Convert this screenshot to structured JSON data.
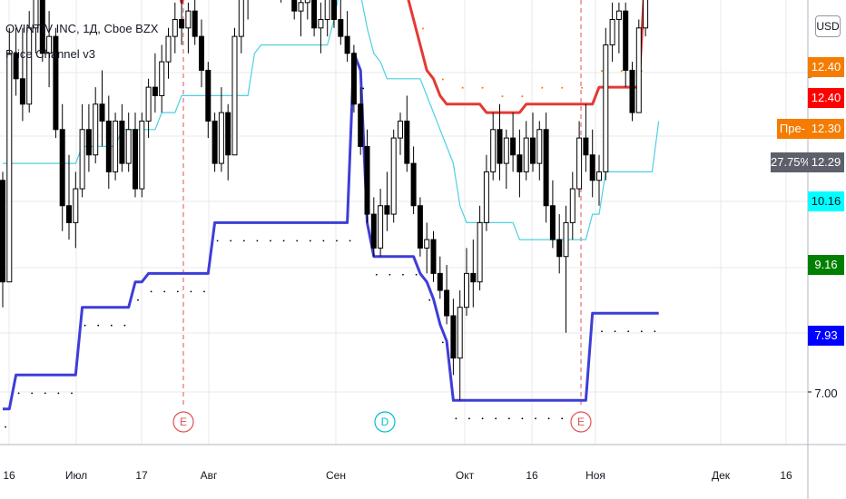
{
  "header": {
    "title": "OVINTIV INC, 1Д, Cboe BZX",
    "indicator": "Price Channel v3",
    "currency_button": "USD"
  },
  "price_scale": {
    "tags": [
      {
        "text": "12.40",
        "bg": "#f57c00",
        "fg": "#ffffff"
      },
      {
        "text": "12.40",
        "bg": "#ff0000",
        "fg": "#ffffff"
      },
      {
        "text": "Пре-",
        "bg": "#f57c00",
        "fg": "#ffffff"
      },
      {
        "text": "12.30",
        "bg": "#f57c00",
        "fg": "#ffffff"
      },
      {
        "text": "27.75%",
        "bg": "#5d606b",
        "fg": "#ffffff"
      },
      {
        "text": "12.29",
        "bg": "#5d606b",
        "fg": "#ffffff"
      },
      {
        "text": "10.16",
        "bg": "#00ffff",
        "fg": "#131722"
      },
      {
        "text": "9.16",
        "bg": "#008000",
        "fg": "#ffffff"
      },
      {
        "text": "7.93",
        "bg": "#0000ff",
        "fg": "#ffffff"
      },
      {
        "text": "7.00",
        "bg": "",
        "fg": "#131722"
      }
    ]
  },
  "time_axis": {
    "labels": [
      "16",
      "Июл",
      "17",
      "Авг",
      "Сен",
      "Окт",
      "16",
      "Ноя",
      "Дек",
      "16"
    ]
  },
  "events": [
    {
      "label": "E",
      "color": "#e05252"
    },
    {
      "label": "D",
      "color": "#00bcd4"
    },
    {
      "label": "E",
      "color": "#e05252"
    }
  ],
  "colors": {
    "up_candle": "#ffffff",
    "down_candle": "#000000",
    "upper_channel": "#e53935",
    "lower_channel": "#3d3dd8",
    "mid_channel": "#4dd0e1",
    "dots_orange": "#f57c00",
    "last_price_line": "#f57c00"
  },
  "chart_data": {
    "type": "candlestick",
    "title": "OVINTIV INC, 1Д, Cboe BZX",
    "indicator": "Price Channel v3",
    "yaxis": {
      "ticks": [
        7.0,
        7.93,
        9.16,
        10.16,
        12.29,
        12.3,
        12.4
      ],
      "range": [
        6.5,
        13.5
      ]
    },
    "last_close": 12.4,
    "change_percent": "27.75%",
    "candles": [
      [
        9.5,
        9.6,
        8.0,
        8.3
      ],
      [
        8.3,
        11.3,
        8.3,
        11.0
      ],
      [
        11.0,
        11.3,
        10.5,
        10.7
      ],
      [
        10.7,
        11.3,
        10.2,
        10.4
      ],
      [
        10.4,
        11.5,
        10.3,
        11.3
      ],
      [
        11.3,
        12.0,
        11.0,
        11.7
      ],
      [
        11.7,
        11.9,
        10.9,
        11.0
      ],
      [
        11.0,
        11.5,
        10.6,
        11.2
      ],
      [
        11.2,
        11.3,
        10.0,
        10.1
      ],
      [
        10.1,
        10.4,
        8.9,
        9.2
      ],
      [
        9.2,
        9.8,
        8.8,
        9.0
      ],
      [
        9.0,
        9.6,
        8.7,
        9.4
      ],
      [
        9.4,
        10.4,
        9.3,
        10.1
      ],
      [
        10.1,
        10.4,
        9.6,
        9.8
      ],
      [
        9.8,
        10.6,
        9.7,
        10.4
      ],
      [
        10.4,
        10.8,
        9.9,
        10.2
      ],
      [
        10.2,
        10.5,
        9.4,
        9.6
      ],
      [
        9.6,
        10.3,
        9.5,
        10.2
      ],
      [
        10.2,
        10.4,
        9.6,
        9.7
      ],
      [
        9.7,
        10.3,
        9.6,
        10.1
      ],
      [
        10.1,
        10.3,
        9.3,
        9.4
      ],
      [
        9.4,
        10.3,
        9.3,
        10.2
      ],
      [
        10.2,
        10.7,
        10.0,
        10.6
      ],
      [
        10.6,
        11.0,
        10.3,
        10.5
      ],
      [
        10.5,
        11.1,
        10.3,
        10.9
      ],
      [
        10.9,
        11.3,
        10.7,
        11.2
      ],
      [
        11.2,
        11.6,
        11.0,
        11.4
      ],
      [
        11.4,
        11.8,
        11.1,
        11.3
      ],
      [
        11.3,
        11.6,
        11.0,
        11.5
      ],
      [
        11.5,
        11.8,
        11.1,
        11.2
      ],
      [
        11.2,
        11.4,
        10.6,
        10.8
      ],
      [
        10.8,
        10.9,
        10.0,
        10.2
      ],
      [
        10.2,
        10.3,
        9.6,
        9.7
      ],
      [
        9.7,
        10.6,
        9.6,
        10.3
      ],
      [
        10.3,
        10.4,
        9.5,
        9.8
      ],
      [
        9.8,
        11.3,
        9.8,
        11.2
      ],
      [
        11.2,
        11.9,
        11.0,
        11.7
      ],
      [
        11.7,
        12.0,
        11.4,
        11.9
      ],
      [
        11.9,
        12.9,
        11.8,
        12.6
      ],
      [
        12.6,
        13.2,
        12.1,
        12.3
      ],
      [
        12.3,
        12.8,
        11.8,
        12.1
      ],
      [
        12.1,
        12.6,
        11.7,
        11.9
      ],
      [
        11.9,
        12.5,
        11.6,
        12.3
      ],
      [
        12.3,
        12.5,
        11.8,
        12.0
      ],
      [
        12.0,
        12.4,
        11.4,
        11.5
      ],
      [
        11.5,
        11.9,
        11.2,
        11.6
      ],
      [
        11.6,
        12.0,
        11.4,
        11.8
      ],
      [
        11.8,
        12.0,
        11.2,
        11.3
      ],
      [
        11.3,
        11.6,
        11.0,
        11.4
      ],
      [
        11.4,
        11.9,
        11.2,
        11.7
      ],
      [
        11.7,
        11.9,
        11.3,
        11.4
      ],
      [
        11.4,
        11.7,
        11.1,
        11.2
      ],
      [
        11.2,
        11.5,
        10.9,
        11.0
      ],
      [
        11.0,
        11.1,
        10.3,
        10.4
      ],
      [
        10.4,
        10.6,
        9.8,
        9.9
      ],
      [
        9.9,
        10.1,
        9.0,
        9.1
      ],
      [
        9.1,
        9.3,
        8.6,
        8.7
      ],
      [
        8.7,
        9.4,
        8.6,
        9.2
      ],
      [
        9.2,
        9.6,
        8.9,
        9.1
      ],
      [
        9.1,
        10.1,
        9.0,
        10.0
      ],
      [
        10.0,
        10.3,
        9.8,
        10.2
      ],
      [
        10.2,
        10.5,
        9.6,
        9.7
      ],
      [
        9.7,
        9.9,
        9.1,
        9.2
      ],
      [
        9.2,
        9.3,
        8.6,
        8.7
      ],
      [
        8.7,
        9.0,
        8.4,
        8.8
      ],
      [
        8.8,
        8.9,
        8.3,
        8.4
      ],
      [
        8.4,
        8.6,
        8.1,
        8.2
      ],
      [
        8.2,
        8.5,
        7.8,
        7.9
      ],
      [
        7.9,
        8.1,
        7.2,
        7.4
      ],
      [
        7.4,
        8.2,
        6.9,
        8.0
      ],
      [
        8.0,
        8.7,
        7.9,
        8.4
      ],
      [
        8.4,
        8.8,
        8.0,
        8.3
      ],
      [
        8.3,
        9.2,
        8.2,
        9.0
      ],
      [
        9.0,
        9.8,
        8.9,
        9.6
      ],
      [
        9.6,
        10.3,
        9.5,
        10.1
      ],
      [
        10.1,
        10.4,
        9.5,
        9.7
      ],
      [
        9.7,
        10.1,
        9.4,
        10.0
      ],
      [
        10.0,
        10.3,
        9.6,
        9.8
      ],
      [
        9.8,
        10.1,
        9.3,
        9.6
      ],
      [
        9.6,
        10.2,
        9.5,
        10.0
      ],
      [
        10.0,
        10.3,
        9.6,
        9.7
      ],
      [
        9.7,
        10.2,
        9.5,
        10.1
      ],
      [
        10.1,
        10.3,
        9.0,
        9.2
      ],
      [
        9.2,
        9.5,
        8.7,
        8.8
      ],
      [
        8.8,
        9.1,
        8.4,
        8.6
      ],
      [
        8.6,
        9.2,
        7.7,
        9.0
      ],
      [
        9.0,
        9.6,
        8.8,
        9.4
      ],
      [
        9.4,
        10.2,
        9.3,
        10.0
      ],
      [
        10.0,
        10.4,
        9.6,
        9.8
      ],
      [
        9.8,
        10.1,
        9.3,
        9.5
      ],
      [
        9.5,
        9.8,
        9.2,
        9.6
      ],
      [
        9.6,
        11.3,
        9.5,
        11.1
      ],
      [
        11.1,
        11.6,
        10.9,
        11.4
      ],
      [
        11.4,
        11.6,
        11.0,
        11.5
      ],
      [
        11.5,
        11.6,
        10.6,
        10.8
      ],
      [
        10.8,
        10.9,
        10.2,
        10.3
      ],
      [
        10.3,
        11.4,
        10.3,
        11.3
      ],
      [
        11.3,
        12.0,
        11.2,
        11.8
      ],
      [
        11.8,
        12.7,
        11.7,
        12.4
      ]
    ],
    "upper_channel": [
      12.9,
      12.9,
      12.9,
      12.9,
      12.9,
      12.9,
      12.9,
      12.9,
      12.9,
      12.9,
      12.9,
      12.9,
      12.9,
      12.9,
      12.9,
      12.9,
      11.9,
      11.9,
      11.9,
      11.9,
      11.9,
      11.9,
      11.9,
      11.9,
      11.9,
      11.9,
      11.9,
      11.6,
      11.8,
      11.8,
      11.8,
      11.8,
      11.8,
      11.8,
      11.8,
      11.8,
      11.8,
      11.8,
      12.9,
      13.2,
      13.2,
      13.2,
      13.2,
      13.2,
      13.2,
      13.2,
      13.2,
      13.2,
      13.2,
      13.2,
      13.2,
      13.2,
      13.2,
      13.2,
      13.0,
      12.8,
      12.6,
      12.6,
      12.4,
      12.1,
      12.0,
      11.7,
      11.4,
      11.1,
      10.8,
      10.7,
      10.5,
      10.4,
      10.4,
      10.4,
      10.4,
      10.4,
      10.4,
      10.3,
      10.3,
      10.3,
      10.3,
      10.3,
      10.3,
      10.4,
      10.4,
      10.4,
      10.4,
      10.4,
      10.4,
      10.4,
      10.4,
      10.4,
      10.4,
      10.4,
      10.6,
      10.6,
      10.6,
      10.6,
      10.6,
      10.6,
      10.6,
      12.0,
      12.0,
      12.0
    ],
    "lower_channel": [
      6.8,
      6.8,
      7.2,
      7.2,
      7.2,
      7.2,
      7.2,
      7.2,
      7.2,
      7.2,
      7.2,
      7.2,
      8.0,
      8.0,
      8.0,
      8.0,
      8.0,
      8.0,
      8.0,
      8.0,
      8.3,
      8.3,
      8.4,
      8.4,
      8.4,
      8.4,
      8.4,
      8.4,
      8.4,
      8.4,
      8.4,
      8.4,
      9.0,
      9.0,
      9.0,
      9.0,
      9.0,
      9.0,
      9.0,
      9.0,
      9.0,
      9.0,
      9.0,
      9.0,
      9.0,
      9.0,
      9.0,
      9.0,
      9.0,
      9.0,
      9.0,
      9.0,
      9.0,
      11.0,
      10.8,
      9.0,
      8.6,
      8.6,
      8.6,
      8.6,
      8.6,
      8.6,
      8.6,
      8.4,
      8.3,
      8.1,
      7.8,
      7.6,
      6.9,
      6.9,
      6.9,
      6.9,
      6.9,
      6.9,
      6.9,
      6.9,
      6.9,
      6.9,
      6.9,
      6.9,
      6.9,
      6.9,
      6.9,
      6.9,
      6.9,
      6.9,
      6.9,
      6.9,
      6.9,
      7.93,
      7.93,
      7.93,
      7.93,
      7.93,
      7.93,
      7.93,
      7.93,
      7.93,
      7.93,
      7.93
    ],
    "mid_channel": [
      9.7,
      9.7,
      9.7,
      9.7,
      9.7,
      9.7,
      9.7,
      9.7,
      9.7,
      9.7,
      9.7,
      9.7,
      9.9,
      9.9,
      9.9,
      9.9,
      9.9,
      9.9,
      10.1,
      10.1,
      10.1,
      10.1,
      10.1,
      10.1,
      10.3,
      10.3,
      10.3,
      10.5,
      10.5,
      10.5,
      10.5,
      10.5,
      10.5,
      10.5,
      10.5,
      10.5,
      10.5,
      10.5,
      11.0,
      11.1,
      11.1,
      11.1,
      11.1,
      11.1,
      11.1,
      11.1,
      11.1,
      11.1,
      11.1,
      11.1,
      11.4,
      11.8,
      12.3,
      12.0,
      11.7,
      11.3,
      11.0,
      10.9,
      10.7,
      10.7,
      10.7,
      10.7,
      10.7,
      10.7,
      10.5,
      10.3,
      10.1,
      9.9,
      9.7,
      9.2,
      9.0,
      9.0,
      9.0,
      9.0,
      9.0,
      9.0,
      9.0,
      9.0,
      8.8,
      8.8,
      8.8,
      8.8,
      8.8,
      8.8,
      8.8,
      8.8,
      8.8,
      8.8,
      8.8,
      9.1,
      9.1,
      9.6,
      9.6,
      9.6,
      9.6,
      9.6,
      9.6,
      9.6,
      9.6,
      10.2
    ]
  }
}
